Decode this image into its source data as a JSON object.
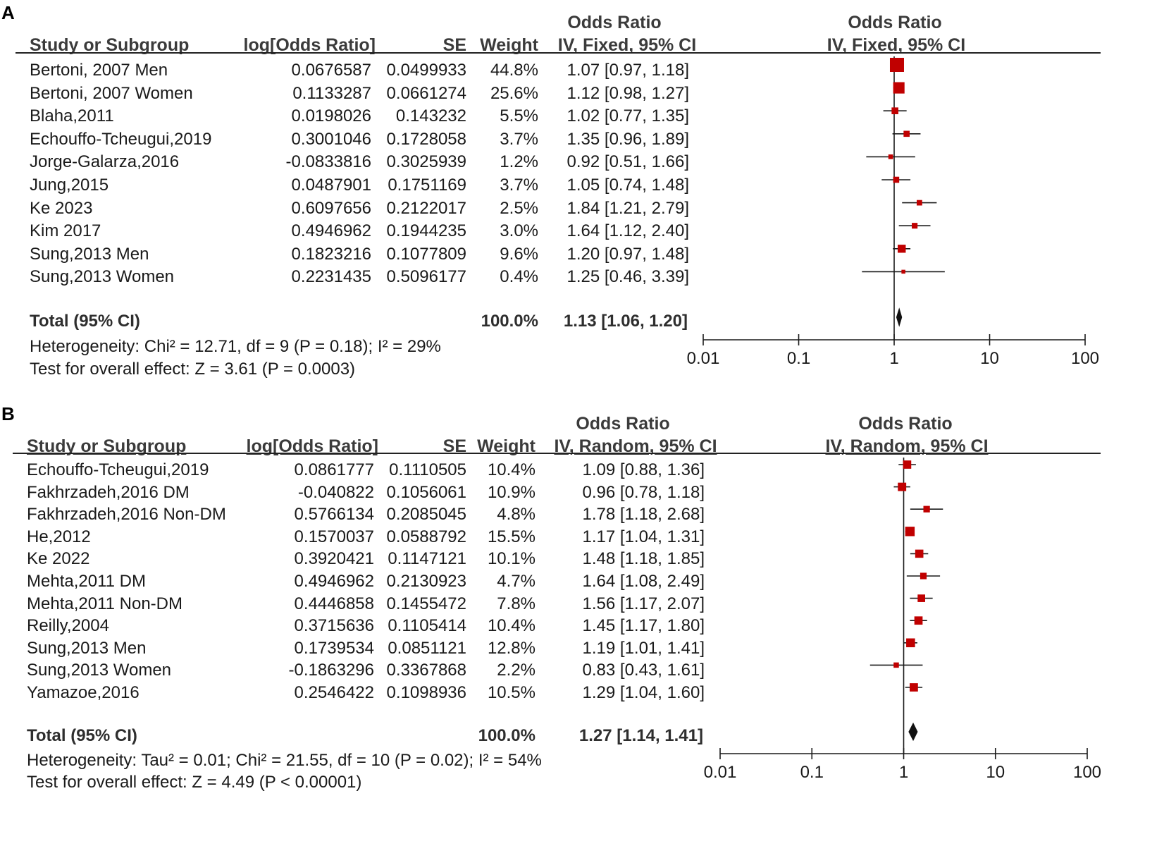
{
  "chart_data": [
    {
      "type": "forest",
      "panel": "A",
      "headers": {
        "study": "Study or Subgroup",
        "log_or": "log[Odds Ratio]",
        "se": "SE",
        "weight": "Weight",
        "or_group": "Odds Ratio",
        "or_method": "IV, Fixed, 95% CI",
        "plot_group": "Odds Ratio",
        "plot_method": "IV, Fixed, 95% CI"
      },
      "studies": [
        {
          "name": "Bertoni, 2007 Men",
          "log_or": "0.0676587",
          "se": "0.0499933",
          "weight": "44.8%",
          "ci_text": "1.07 [0.97, 1.18]",
          "or": 1.07,
          "lo": 0.97,
          "hi": 1.18,
          "w": 44.8
        },
        {
          "name": "Bertoni, 2007 Women",
          "log_or": "0.1133287",
          "se": "0.0661274",
          "weight": "25.6%",
          "ci_text": "1.12 [0.98, 1.27]",
          "or": 1.12,
          "lo": 0.98,
          "hi": 1.27,
          "w": 25.6
        },
        {
          "name": "Blaha,2011",
          "log_or": "0.0198026",
          "se": "0.143232",
          "weight": "5.5%",
          "ci_text": "1.02 [0.77, 1.35]",
          "or": 1.02,
          "lo": 0.77,
          "hi": 1.35,
          "w": 5.5
        },
        {
          "name": "Echouffo-Tcheugui,2019",
          "log_or": "0.3001046",
          "se": "0.1728058",
          "weight": "3.7%",
          "ci_text": "1.35 [0.96, 1.89]",
          "or": 1.35,
          "lo": 0.96,
          "hi": 1.89,
          "w": 3.7
        },
        {
          "name": "Jorge-Galarza,2016",
          "log_or": "-0.0833816",
          "se": "0.3025939",
          "weight": "1.2%",
          "ci_text": "0.92 [0.51, 1.66]",
          "or": 0.92,
          "lo": 0.51,
          "hi": 1.66,
          "w": 1.2
        },
        {
          "name": "Jung,2015",
          "log_or": "0.0487901",
          "se": "0.1751169",
          "weight": "3.7%",
          "ci_text": "1.05 [0.74, 1.48]",
          "or": 1.05,
          "lo": 0.74,
          "hi": 1.48,
          "w": 3.7
        },
        {
          "name": "Ke 2023",
          "log_or": "0.6097656",
          "se": "0.2122017",
          "weight": "2.5%",
          "ci_text": "1.84 [1.21, 2.79]",
          "or": 1.84,
          "lo": 1.21,
          "hi": 2.79,
          "w": 2.5
        },
        {
          "name": "Kim 2017",
          "log_or": "0.4946962",
          "se": "0.1944235",
          "weight": "3.0%",
          "ci_text": "1.64 [1.12, 2.40]",
          "or": 1.64,
          "lo": 1.12,
          "hi": 2.4,
          "w": 3.0
        },
        {
          "name": "Sung,2013 Men",
          "log_or": "0.1823216",
          "se": "0.1077809",
          "weight": "9.6%",
          "ci_text": "1.20 [0.97, 1.48]",
          "or": 1.2,
          "lo": 0.97,
          "hi": 1.48,
          "w": 9.6
        },
        {
          "name": "Sung,2013 Women",
          "log_or": "0.2231435",
          "se": "0.5096177",
          "weight": "0.4%",
          "ci_text": "1.25 [0.46, 3.39]",
          "or": 1.25,
          "lo": 0.46,
          "hi": 3.39,
          "w": 0.4
        }
      ],
      "total": {
        "label": "Total (95% CI)",
        "weight": "100.0%",
        "ci_text": "1.13 [1.06, 1.20]",
        "or": 1.13,
        "lo": 1.06,
        "hi": 1.2
      },
      "heterogeneity": "Heterogeneity: Chi² = 12.71, df = 9 (P = 0.18); I² = 29%",
      "overall_effect": "Test for overall effect: Z = 3.61 (P = 0.0003)",
      "x_scale": "log",
      "xlim": [
        0.01,
        100
      ],
      "ticks": [
        0.01,
        0.1,
        1,
        10,
        100
      ],
      "tick_labels": [
        "0.01",
        "0.1",
        "1",
        "10",
        "100"
      ]
    },
    {
      "type": "forest",
      "panel": "B",
      "headers": {
        "study": "Study or Subgroup",
        "log_or": "log[Odds Ratio]",
        "se": "SE",
        "weight": "Weight",
        "or_group": "Odds Ratio",
        "or_method": "IV, Random, 95% CI",
        "plot_group": "Odds Ratio",
        "plot_method": "IV, Random, 95% CI"
      },
      "studies": [
        {
          "name": "Echouffo-Tcheugui,2019",
          "log_or": "0.0861777",
          "se": "0.1110505",
          "weight": "10.4%",
          "ci_text": "1.09 [0.88, 1.36]",
          "or": 1.09,
          "lo": 0.88,
          "hi": 1.36,
          "w": 10.4
        },
        {
          "name": "Fakhrzadeh,2016 DM",
          "log_or": "-0.040822",
          "se": "0.1056061",
          "weight": "10.9%",
          "ci_text": "0.96 [0.78, 1.18]",
          "or": 0.96,
          "lo": 0.78,
          "hi": 1.18,
          "w": 10.9
        },
        {
          "name": "Fakhrzadeh,2016 Non-DM",
          "log_or": "0.5766134",
          "se": "0.2085045",
          "weight": "4.8%",
          "ci_text": "1.78 [1.18, 2.68]",
          "or": 1.78,
          "lo": 1.18,
          "hi": 2.68,
          "w": 4.8
        },
        {
          "name": "He,2012",
          "log_or": "0.1570037",
          "se": "0.0588792",
          "weight": "15.5%",
          "ci_text": "1.17 [1.04, 1.31]",
          "or": 1.17,
          "lo": 1.04,
          "hi": 1.31,
          "w": 15.5
        },
        {
          "name": "Ke 2022",
          "log_or": "0.3920421",
          "se": "0.1147121",
          "weight": "10.1%",
          "ci_text": "1.48 [1.18, 1.85]",
          "or": 1.48,
          "lo": 1.18,
          "hi": 1.85,
          "w": 10.1
        },
        {
          "name": "Mehta,2011 DM",
          "log_or": "0.4946962",
          "se": "0.2130923",
          "weight": "4.7%",
          "ci_text": "1.64 [1.08, 2.49]",
          "or": 1.64,
          "lo": 1.08,
          "hi": 2.49,
          "w": 4.7
        },
        {
          "name": "Mehta,2011 Non-DM",
          "log_or": "0.4446858",
          "se": "0.1455472",
          "weight": "7.8%",
          "ci_text": "1.56 [1.17, 2.07]",
          "or": 1.56,
          "lo": 1.17,
          "hi": 2.07,
          "w": 7.8
        },
        {
          "name": "Reilly,2004",
          "log_or": "0.3715636",
          "se": "0.1105414",
          "weight": "10.4%",
          "ci_text": "1.45 [1.17, 1.80]",
          "or": 1.45,
          "lo": 1.17,
          "hi": 1.8,
          "w": 10.4
        },
        {
          "name": "Sung,2013 Men",
          "log_or": "0.1739534",
          "se": "0.0851121",
          "weight": "12.8%",
          "ci_text": "1.19 [1.01, 1.41]",
          "or": 1.19,
          "lo": 1.01,
          "hi": 1.41,
          "w": 12.8
        },
        {
          "name": "Sung,2013 Women",
          "log_or": "-0.1863296",
          "se": "0.3367868",
          "weight": "2.2%",
          "ci_text": "0.83 [0.43, 1.61]",
          "or": 0.83,
          "lo": 0.43,
          "hi": 1.61,
          "w": 2.2
        },
        {
          "name": "Yamazoe,2016",
          "log_or": "0.2546422",
          "se": "0.1098936",
          "weight": "10.5%",
          "ci_text": "1.29 [1.04, 1.60]",
          "or": 1.29,
          "lo": 1.04,
          "hi": 1.6,
          "w": 10.5
        }
      ],
      "total": {
        "label": "Total (95% CI)",
        "weight": "100.0%",
        "ci_text": "1.27 [1.14, 1.41]",
        "or": 1.27,
        "lo": 1.14,
        "hi": 1.41
      },
      "heterogeneity": "Heterogeneity: Tau² = 0.01; Chi² = 21.55, df = 10 (P = 0.02); I² = 54%",
      "overall_effect": "Test for overall effect: Z = 4.49 (P < 0.00001)",
      "x_scale": "log",
      "xlim": [
        0.01,
        100
      ],
      "ticks": [
        0.01,
        0.1,
        1,
        10,
        100
      ],
      "tick_labels": [
        "0.01",
        "0.1",
        "1",
        "10",
        "100"
      ]
    }
  ],
  "colors": {
    "marker": "#c00000",
    "line": "#1a1a1a",
    "diamond": "#111111"
  }
}
